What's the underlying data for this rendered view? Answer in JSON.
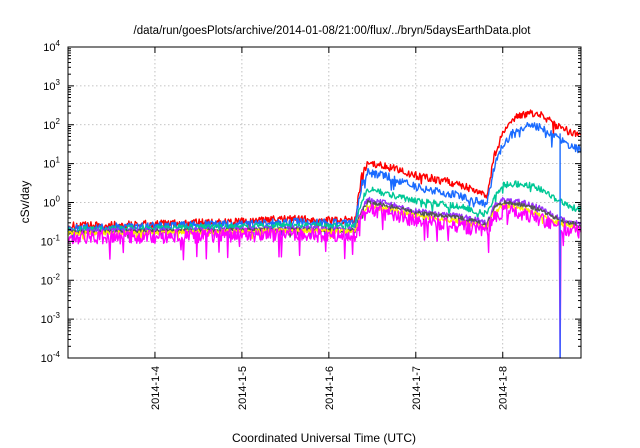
{
  "chart_data": {
    "type": "line",
    "title": "/data/run/goesPlots/archive/2014-01-08/21:00/flux/../bryn/5daysEarthData.plot",
    "xlabel": "Coordinated Universal Time (UTC)",
    "ylabel": "cSv/day",
    "yscale": "log",
    "ylim": [
      0.0001,
      10000
    ],
    "xlim": [
      3.0,
      8.9
    ],
    "grid": true,
    "x_ticks": [
      {
        "value": 4,
        "label": "2014-1-4"
      },
      {
        "value": 5,
        "label": "2014-1-5"
      },
      {
        "value": 6,
        "label": "2014-1-6"
      },
      {
        "value": 7,
        "label": "2014-1-7"
      },
      {
        "value": 8,
        "label": "2014-1-8"
      }
    ],
    "y_ticks": [
      {
        "value": 0.0001,
        "base": "10",
        "exp": "-4"
      },
      {
        "value": 0.001,
        "base": "10",
        "exp": "-3"
      },
      {
        "value": 0.01,
        "base": "10",
        "exp": "-2"
      },
      {
        "value": 0.1,
        "base": "10",
        "exp": "-1"
      },
      {
        "value": 1,
        "base": "10",
        "exp": "0"
      },
      {
        "value": 10,
        "base": "10",
        "exp": "1"
      },
      {
        "value": 100,
        "base": "10",
        "exp": "2"
      },
      {
        "value": 1000,
        "base": "10",
        "exp": "3"
      },
      {
        "value": 10000,
        "base": "10",
        "exp": "4"
      }
    ],
    "series": [
      {
        "color": "#ff0000",
        "noise": 0.1,
        "x": [
          3.0,
          4.0,
          5.0,
          5.5,
          6.3,
          6.38,
          6.45,
          6.7,
          7.0,
          7.5,
          7.82,
          7.9,
          8.0,
          8.15,
          8.3,
          8.45,
          8.6,
          8.75,
          8.9
        ],
        "y": [
          0.25,
          0.28,
          0.32,
          0.38,
          0.35,
          5,
          10,
          8,
          5,
          3,
          1.5,
          15,
          60,
          150,
          200,
          180,
          100,
          70,
          55
        ]
      },
      {
        "color": "#1a6bff",
        "noise": 0.1,
        "x": [
          3.0,
          4.0,
          5.0,
          5.5,
          6.3,
          6.38,
          6.45,
          6.7,
          7.0,
          7.5,
          7.82,
          7.9,
          8.0,
          8.15,
          8.3,
          8.45,
          8.6,
          8.75,
          8.9
        ],
        "y": [
          0.22,
          0.25,
          0.28,
          0.32,
          0.3,
          3,
          6,
          4.5,
          2.5,
          1.5,
          0.9,
          8,
          30,
          75,
          95,
          85,
          50,
          30,
          22
        ]
      },
      {
        "color": "#00c896",
        "noise": 0.08,
        "x": [
          3.0,
          4.0,
          5.0,
          5.5,
          6.3,
          6.38,
          6.45,
          6.7,
          7.0,
          7.5,
          7.82,
          7.9,
          8.0,
          8.15,
          8.3,
          8.45,
          8.6,
          8.75,
          8.9
        ],
        "y": [
          0.2,
          0.22,
          0.24,
          0.26,
          0.24,
          1.2,
          2.2,
          1.6,
          1.1,
          0.8,
          0.5,
          1.5,
          2.8,
          3.0,
          2.8,
          2.2,
          1.3,
          0.8,
          0.65
        ]
      },
      {
        "color": "#9b30ff",
        "noise": 0.07,
        "x": [
          3.0,
          4.0,
          5.0,
          5.5,
          6.3,
          6.38,
          6.45,
          6.7,
          7.0,
          7.5,
          7.82,
          7.9,
          8.0,
          8.15,
          8.3,
          8.45,
          8.6,
          8.75,
          8.9
        ],
        "y": [
          0.18,
          0.19,
          0.2,
          0.22,
          0.2,
          0.7,
          1.2,
          0.9,
          0.6,
          0.45,
          0.3,
          0.8,
          1.2,
          1.1,
          0.9,
          0.7,
          0.45,
          0.35,
          0.28
        ]
      },
      {
        "color": "#555555",
        "noise": 0.06,
        "x": [
          3.0,
          4.0,
          5.0,
          5.5,
          6.3,
          6.38,
          6.45,
          6.7,
          7.0,
          7.5,
          7.82,
          7.9,
          8.0,
          8.15,
          8.3,
          8.45,
          8.6,
          8.75,
          8.9
        ],
        "y": [
          0.17,
          0.18,
          0.19,
          0.2,
          0.19,
          0.6,
          1.0,
          0.8,
          0.55,
          0.4,
          0.27,
          0.7,
          1.0,
          0.95,
          0.8,
          0.6,
          0.4,
          0.3,
          0.25
        ]
      },
      {
        "color": "#ffee00",
        "noise": 0.06,
        "x": [
          3.0,
          4.0,
          5.0,
          5.5,
          6.3,
          6.38,
          6.45,
          6.7,
          7.0,
          7.5,
          7.82,
          7.9,
          8.0,
          8.15,
          8.3,
          8.45,
          8.6,
          8.75,
          8.9
        ],
        "y": [
          0.16,
          0.17,
          0.18,
          0.19,
          0.18,
          0.5,
          0.8,
          0.65,
          0.45,
          0.33,
          0.23,
          0.55,
          0.8,
          0.75,
          0.6,
          0.45,
          0.32,
          0.25,
          0.2
        ]
      },
      {
        "color": "#ff00ff",
        "noise": 0.18,
        "x": [
          3.0,
          4.0,
          5.0,
          5.5,
          6.3,
          6.38,
          6.45,
          6.7,
          7.0,
          7.5,
          7.82,
          7.9,
          8.0,
          8.15,
          8.3,
          8.45,
          8.6,
          8.65,
          8.66,
          8.67,
          8.75,
          8.9
        ],
        "y": [
          0.13,
          0.13,
          0.14,
          0.15,
          0.14,
          0.4,
          0.65,
          0.5,
          0.35,
          0.25,
          0.18,
          0.4,
          0.6,
          0.55,
          0.45,
          0.35,
          0.26,
          0.25,
          0.0001,
          0.24,
          0.2,
          0.17
        ]
      },
      {
        "color": "#1a6bff",
        "noise": 0.0,
        "x": [
          8.66,
          8.66
        ],
        "y": [
          60,
          0.0001
        ]
      }
    ]
  }
}
